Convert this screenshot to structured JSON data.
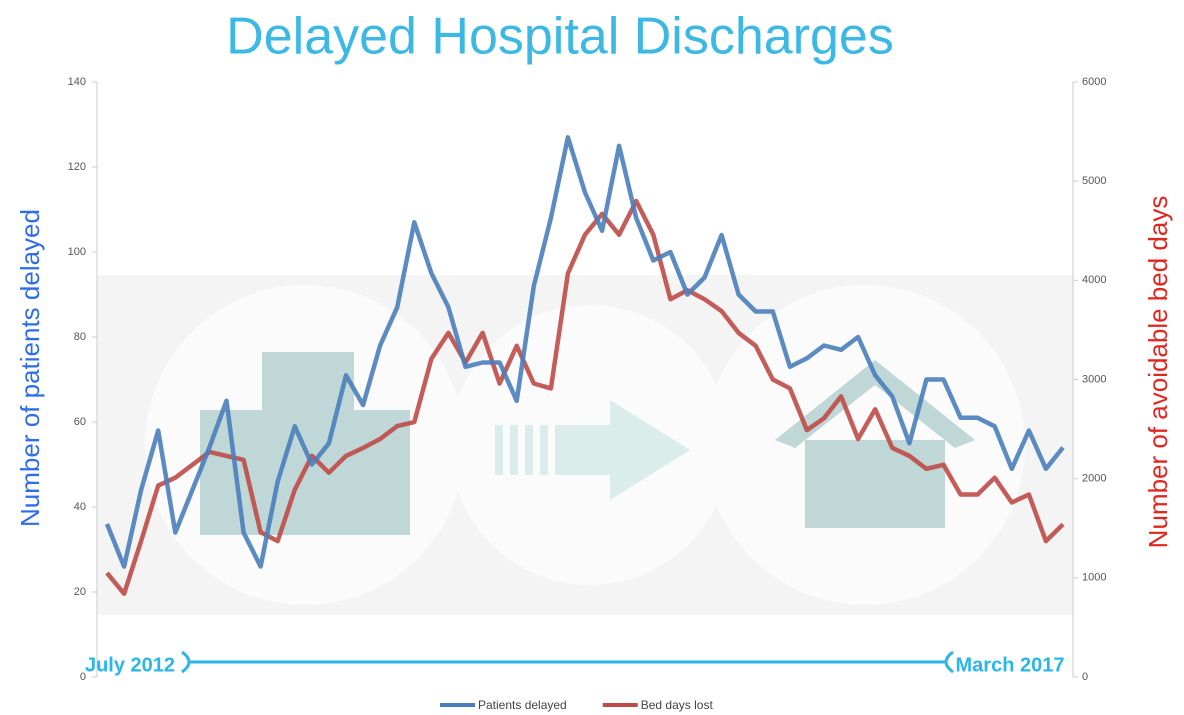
{
  "chart_data": {
    "type": "line",
    "title": "Delayed Hospital Discharges",
    "y_label": "Number of patients delayed",
    "y2_label": "Number of avoidable bed days",
    "categories": [
      "July 2012",
      null,
      null,
      null,
      null,
      null,
      null,
      null,
      null,
      null,
      null,
      null,
      null,
      null,
      null,
      null,
      null,
      null,
      null,
      null,
      null,
      null,
      null,
      null,
      null,
      null,
      null,
      null,
      null,
      null,
      null,
      null,
      null,
      null,
      null,
      null,
      null,
      null,
      null,
      null,
      null,
      null,
      null,
      null,
      null,
      null,
      null,
      null,
      null,
      null,
      null,
      null,
      null,
      null,
      null,
      null,
      "March 2017"
    ],
    "series": [
      {
        "name": "Patients delayed",
        "color": "#4a7ebb",
        "axis": "y",
        "values": [
          36,
          26,
          44,
          58,
          34,
          44,
          54,
          65,
          34,
          26,
          46,
          59,
          50,
          55,
          71,
          64,
          78,
          87,
          107,
          95,
          87,
          73,
          74,
          74,
          65,
          92,
          108,
          127,
          114,
          105,
          125,
          108,
          98,
          100,
          90,
          94,
          104,
          90,
          86,
          86,
          73,
          75,
          78,
          77,
          80,
          71,
          66,
          55,
          70,
          70,
          61,
          61,
          59,
          49,
          58,
          49,
          54
        ]
      },
      {
        "name": "Bed days lost",
        "color": "#be4b48",
        "axis": "y2",
        "values": [
          1050,
          840,
          1370,
          1930,
          2010,
          2140,
          2270,
          2230,
          2190,
          1460,
          1370,
          1890,
          2230,
          2060,
          2230,
          2310,
          2400,
          2530,
          2570,
          3210,
          3470,
          3170,
          3470,
          2960,
          3340,
          2960,
          2910,
          4070,
          4460,
          4670,
          4460,
          4800,
          4460,
          3810,
          3900,
          3810,
          3690,
          3470,
          3340,
          3000,
          2910,
          2490,
          2610,
          2830,
          2400,
          2700,
          2310,
          2230,
          2100,
          2140,
          1840,
          1840,
          2010,
          1760,
          1840,
          1370,
          1540
        ]
      }
    ],
    "ylim": [
      0,
      140
    ],
    "yticks": [
      0,
      20,
      40,
      60,
      80,
      100,
      120,
      140
    ],
    "y2lim": [
      0,
      6000
    ],
    "y2ticks": [
      0,
      1000,
      2000,
      3000,
      4000,
      5000,
      6000
    ],
    "grid": false,
    "legend": "bottom"
  }
}
